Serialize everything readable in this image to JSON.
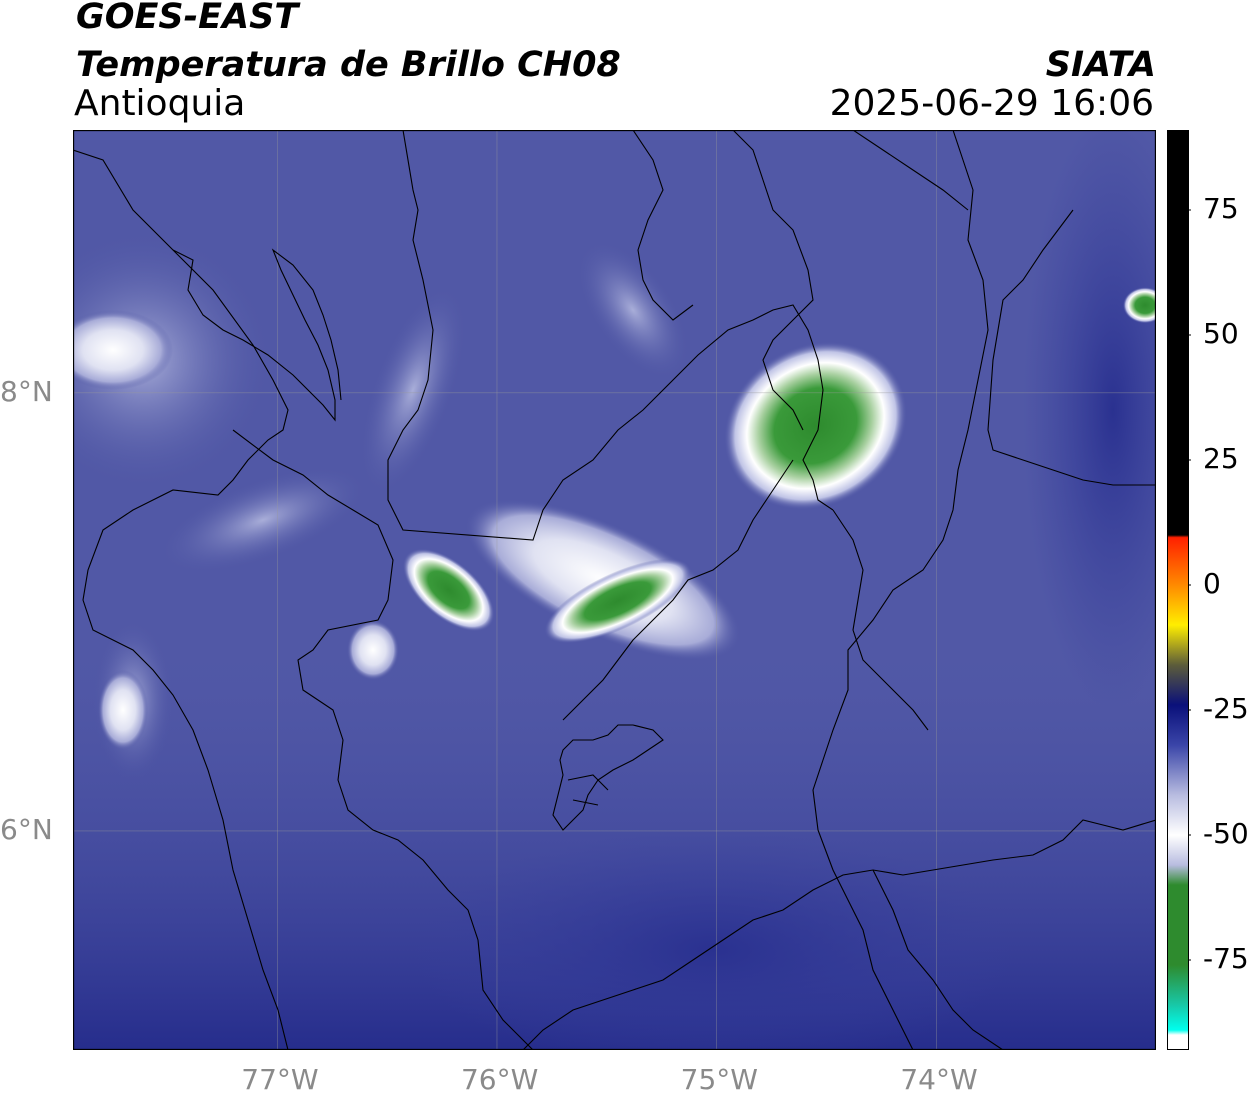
{
  "header": {
    "title_line1": "GOES-EAST",
    "title_line2": "Temperatura de Brillo CH08",
    "region": "Antioquia",
    "organization": "SIATA",
    "timestamp": "2025-06-29 16:06"
  },
  "map": {
    "lon_ticks": [
      {
        "value": -77,
        "label": "77°W"
      },
      {
        "value": -76,
        "label": "76°W"
      },
      {
        "value": -75,
        "label": "75°W"
      },
      {
        "value": -74,
        "label": "74°W"
      }
    ],
    "lat_ticks": [
      {
        "value": 8,
        "label": "8°N"
      },
      {
        "value": 6,
        "label": "6°N"
      }
    ],
    "lon_range": [
      -77.93,
      -73.0
    ],
    "lat_range": [
      5.0,
      9.2
    ],
    "background_color": "#5158a6",
    "grid": true,
    "cloud_features": [
      {
        "name": "deep-convection-cell",
        "lon": -74.55,
        "lat": 7.85,
        "min_temp_c": -70
      },
      {
        "name": "convective-cell-west",
        "lon": -76.22,
        "lat": 7.1,
        "min_temp_c": -60
      },
      {
        "name": "cloud-band-central",
        "lon": -75.45,
        "lat": 7.05,
        "min_temp_c": -55
      },
      {
        "name": "cloud-patch-northeast",
        "lon": -73.05,
        "lat": 8.4,
        "min_temp_c": -65
      }
    ]
  },
  "colorbar": {
    "min": -93,
    "max": 91,
    "ticks": [
      {
        "value": 75,
        "label": "75"
      },
      {
        "value": 50,
        "label": "50"
      },
      {
        "value": 25,
        "label": "25"
      },
      {
        "value": 0,
        "label": "0"
      },
      {
        "value": -25,
        "label": "-25"
      },
      {
        "value": -50,
        "label": "-50"
      },
      {
        "value": -75,
        "label": "-75"
      }
    ],
    "colors": {
      "black": "#000000",
      "red": "#ff2000",
      "orange": "#ff8a00",
      "yellow": "#ffee00",
      "olive": "#5c5c3a",
      "navy": "#0a107a",
      "blue": "#3a45a8",
      "lavender": "#b8bce0",
      "white": "#ffffff",
      "green": "#2e8b2e",
      "teal": "#18c8a8",
      "cyan": "#00ffee"
    }
  }
}
